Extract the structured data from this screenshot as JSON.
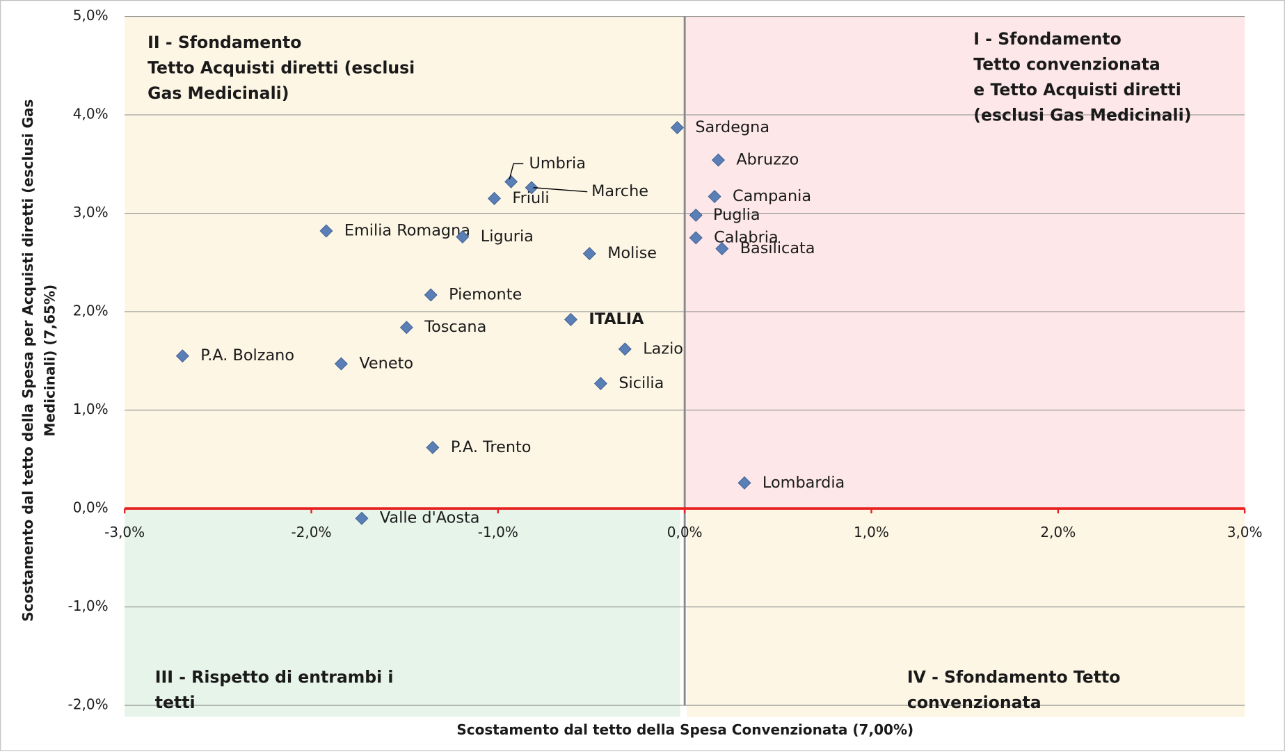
{
  "chart_data": {
    "type": "scatter",
    "x_label": "Scostamento dal tetto della Spesa Convenzionata (7,00%)",
    "y_label": [
      "Scostamento dal tetto della Spesa per Acquisti diretti   (esclusi Gas",
      "Medicinali) (7,65%)"
    ],
    "quadrants": [
      [
        "I - Sfondamento",
        "Tetto convenzionata",
        "e Tetto Acquisti diretti",
        "(esclusi Gas Medicinali)"
      ],
      [
        "II - Sfondamento",
        "Tetto Acquisti diretti (esclusi",
        "Gas Medicinali)"
      ],
      [
        "III - Rispetto di entrambi i",
        "tetti"
      ],
      [
        "IV - Sfondamento Tetto",
        "convenzionata"
      ]
    ],
    "xlim": [
      -3,
      3
    ],
    "ylim": [
      -2,
      5
    ],
    "xticks": [
      {
        "value": -3,
        "label": "-3,0%"
      },
      {
        "value": -2,
        "label": "-2,0%"
      },
      {
        "value": -1,
        "label": "-1,0%"
      },
      {
        "value": 0,
        "label": "0,0%"
      },
      {
        "value": 1,
        "label": "1,0%"
      },
      {
        "value": 2,
        "label": "2,0%"
      },
      {
        "value": 3,
        "label": "3,0%"
      }
    ],
    "yticks": [
      {
        "value": -2,
        "label": "-2,0%"
      },
      {
        "value": -1,
        "label": "-1,0%"
      },
      {
        "value": 0,
        "label": "0,0%"
      },
      {
        "value": 1,
        "label": "1,0%"
      },
      {
        "value": 2,
        "label": "2,0%"
      },
      {
        "value": 3,
        "label": "3,0%"
      },
      {
        "value": 4,
        "label": "4,0%"
      },
      {
        "value": 5,
        "label": "5,0%"
      }
    ],
    "grid": true,
    "color": "#5a7fb6",
    "labels": [
      "Sardegna",
      "Abruzzo",
      "Campania",
      "Puglia",
      "Calabria",
      "Basilicata",
      "Lombardia",
      "Umbria",
      "Marche",
      "Friuli",
      "Emilia Romagna",
      "Liguria",
      "Molise",
      "Piemonte",
      "ITALIA",
      "Toscana",
      "P.A. Bolzano",
      "Veneto",
      "Lazio",
      "Sicilia",
      "P.A. Trento",
      "Valle d'Aosta"
    ],
    "x": [
      -0.04,
      0.18,
      0.16,
      0.06,
      0.06,
      0.2,
      0.32,
      -0.93,
      -0.82,
      -1.02,
      -1.92,
      -1.19,
      -0.51,
      -1.36,
      -0.61,
      -1.49,
      -2.69,
      -1.84,
      -0.32,
      -0.45,
      -1.35,
      -1.73
    ],
    "values": [
      3.87,
      3.54,
      3.17,
      2.98,
      2.75,
      2.64,
      0.26,
      3.32,
      3.26,
      3.15,
      2.82,
      2.76,
      2.59,
      2.17,
      1.92,
      1.84,
      1.55,
      1.47,
      1.62,
      1.27,
      0.62,
      -0.1
    ]
  }
}
